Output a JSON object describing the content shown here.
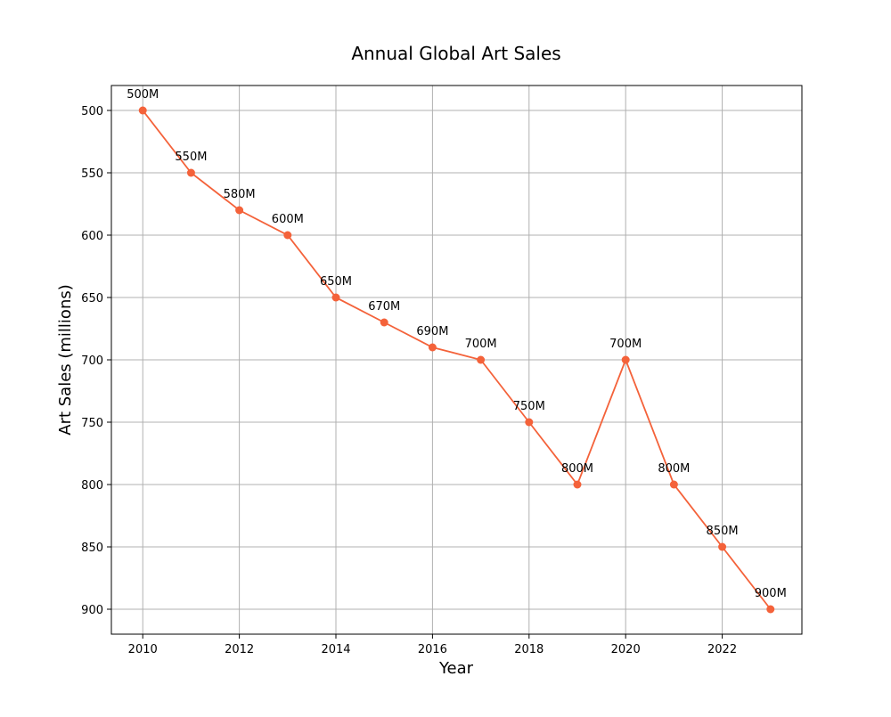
{
  "chart_data": {
    "type": "line",
    "title": "Annual Global Art Sales",
    "xlabel": "Year",
    "ylabel": "Art Sales (millions)",
    "x": [
      2010,
      2011,
      2012,
      2013,
      2014,
      2015,
      2016,
      2017,
      2018,
      2019,
      2020,
      2021,
      2022,
      2023
    ],
    "series": [
      {
        "values": [
          500,
          550,
          580,
          600,
          650,
          670,
          690,
          700,
          750,
          800,
          700,
          800,
          850,
          900
        ],
        "data_labels": [
          "500M",
          "550M",
          "580M",
          "600M",
          "650M",
          "670M",
          "690M",
          "700M",
          "750M",
          "800M",
          "700M",
          "800M",
          "850M",
          "900M"
        ],
        "color": "#f4623a",
        "marker": "circle"
      }
    ],
    "xticks": [
      "2010",
      "2012",
      "2014",
      "2016",
      "2018",
      "2020",
      "2022"
    ],
    "yticks": [
      "500",
      "550",
      "600",
      "650",
      "700",
      "750",
      "800",
      "850",
      "900"
    ],
    "xlim": [
      2009.35,
      2023.65
    ],
    "ylim": [
      480,
      920
    ],
    "y_inverted": true,
    "grid": true
  }
}
